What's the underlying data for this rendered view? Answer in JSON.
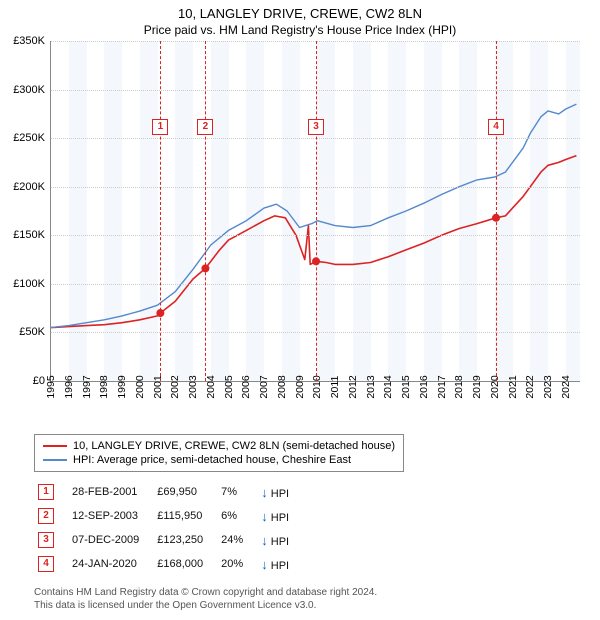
{
  "title": "10, LANGLEY DRIVE, CREWE, CW2 8LN",
  "subtitle": "Price paid vs. HM Land Registry's House Price Index (HPI)",
  "chart": {
    "type": "line",
    "x_range": [
      1995,
      2024.8
    ],
    "y_range": [
      0,
      350000
    ],
    "y_ticks": [
      0,
      50000,
      100000,
      150000,
      200000,
      250000,
      300000,
      350000
    ],
    "y_tick_labels": [
      "£0",
      "£50K",
      "£100K",
      "£150K",
      "£200K",
      "£250K",
      "£300K",
      "£350K"
    ],
    "x_ticks": [
      1995,
      1996,
      1997,
      1998,
      1999,
      2000,
      2001,
      2002,
      2003,
      2004,
      2005,
      2006,
      2007,
      2008,
      2009,
      2010,
      2011,
      2012,
      2013,
      2014,
      2015,
      2016,
      2017,
      2018,
      2019,
      2020,
      2021,
      2022,
      2023,
      2024
    ],
    "band_even_color": "#f4f8fd",
    "grid_color": "#cccccc",
    "series": [
      {
        "name": "price_paid",
        "color": "#dd2222",
        "width": 1.6,
        "points": [
          [
            1995.0,
            55000
          ],
          [
            1996.0,
            56000
          ],
          [
            1997.0,
            57000
          ],
          [
            1998.0,
            58000
          ],
          [
            1999.0,
            60000
          ],
          [
            2000.0,
            63000
          ],
          [
            2001.0,
            67000
          ],
          [
            2001.16,
            69950
          ],
          [
            2002.0,
            82000
          ],
          [
            2003.0,
            105000
          ],
          [
            2003.7,
            115950
          ],
          [
            2004.5,
            135000
          ],
          [
            2005.0,
            145000
          ],
          [
            2006.0,
            155000
          ],
          [
            2007.0,
            165000
          ],
          [
            2007.6,
            170000
          ],
          [
            2008.2,
            168000
          ],
          [
            2008.8,
            150000
          ],
          [
            2009.3,
            125000
          ],
          [
            2009.5,
            160000
          ],
          [
            2009.6,
            120000
          ],
          [
            2009.93,
            123250
          ],
          [
            2010.5,
            122000
          ],
          [
            2011.0,
            120000
          ],
          [
            2012.0,
            120000
          ],
          [
            2013.0,
            122000
          ],
          [
            2014.0,
            128000
          ],
          [
            2015.0,
            135000
          ],
          [
            2016.0,
            142000
          ],
          [
            2017.0,
            150000
          ],
          [
            2018.0,
            157000
          ],
          [
            2019.0,
            162000
          ],
          [
            2020.07,
            168000
          ],
          [
            2020.6,
            170000
          ],
          [
            2021.0,
            178000
          ],
          [
            2021.6,
            190000
          ],
          [
            2022.0,
            200000
          ],
          [
            2022.6,
            215000
          ],
          [
            2023.0,
            222000
          ],
          [
            2023.6,
            225000
          ],
          [
            2024.0,
            228000
          ],
          [
            2024.6,
            232000
          ]
        ]
      },
      {
        "name": "hpi",
        "color": "#5588cc",
        "width": 1.4,
        "points": [
          [
            1995.0,
            55000
          ],
          [
            1996.0,
            57000
          ],
          [
            1997.0,
            60000
          ],
          [
            1998.0,
            63000
          ],
          [
            1999.0,
            67000
          ],
          [
            2000.0,
            72000
          ],
          [
            2001.0,
            78000
          ],
          [
            2002.0,
            92000
          ],
          [
            2003.0,
            115000
          ],
          [
            2004.0,
            140000
          ],
          [
            2005.0,
            155000
          ],
          [
            2006.0,
            165000
          ],
          [
            2007.0,
            178000
          ],
          [
            2007.7,
            182000
          ],
          [
            2008.3,
            175000
          ],
          [
            2009.0,
            158000
          ],
          [
            2009.7,
            162000
          ],
          [
            2010.0,
            165000
          ],
          [
            2011.0,
            160000
          ],
          [
            2012.0,
            158000
          ],
          [
            2013.0,
            160000
          ],
          [
            2014.0,
            168000
          ],
          [
            2015.0,
            175000
          ],
          [
            2016.0,
            183000
          ],
          [
            2017.0,
            192000
          ],
          [
            2018.0,
            200000
          ],
          [
            2019.0,
            207000
          ],
          [
            2020.0,
            210000
          ],
          [
            2020.6,
            215000
          ],
          [
            2021.0,
            225000
          ],
          [
            2021.6,
            240000
          ],
          [
            2022.0,
            255000
          ],
          [
            2022.6,
            272000
          ],
          [
            2023.0,
            278000
          ],
          [
            2023.6,
            275000
          ],
          [
            2024.0,
            280000
          ],
          [
            2024.6,
            285000
          ]
        ]
      }
    ],
    "sale_markers": [
      {
        "x": 2001.16,
        "y": 69950
      },
      {
        "x": 2003.7,
        "y": 115950
      },
      {
        "x": 2009.93,
        "y": 123250
      },
      {
        "x": 2020.07,
        "y": 168000
      }
    ],
    "marker_lines": [
      {
        "n": "1",
        "x": 2001.16,
        "box_top": 78
      },
      {
        "n": "2",
        "x": 2003.7,
        "box_top": 78
      },
      {
        "n": "3",
        "x": 2009.93,
        "box_top": 78
      },
      {
        "n": "4",
        "x": 2020.07,
        "box_top": 78
      }
    ]
  },
  "legend": {
    "items": [
      {
        "color": "#dd2222",
        "label": "10, LANGLEY DRIVE, CREWE, CW2 8LN (semi-detached house)"
      },
      {
        "color": "#5588cc",
        "label": "HPI: Average price, semi-detached house, Cheshire East"
      }
    ]
  },
  "table": {
    "rows": [
      {
        "n": "1",
        "date": "28-FEB-2001",
        "price": "£69,950",
        "pct": "7%",
        "suffix": "HPI"
      },
      {
        "n": "2",
        "date": "12-SEP-2003",
        "price": "£115,950",
        "pct": "6%",
        "suffix": "HPI"
      },
      {
        "n": "3",
        "date": "07-DEC-2009",
        "price": "£123,250",
        "pct": "24%",
        "suffix": "HPI"
      },
      {
        "n": "4",
        "date": "24-JAN-2020",
        "price": "£168,000",
        "pct": "20%",
        "suffix": "HPI"
      }
    ]
  },
  "footer": {
    "line1": "Contains HM Land Registry data © Crown copyright and database right 2024.",
    "line2": "This data is licensed under the Open Government Licence v3.0."
  }
}
